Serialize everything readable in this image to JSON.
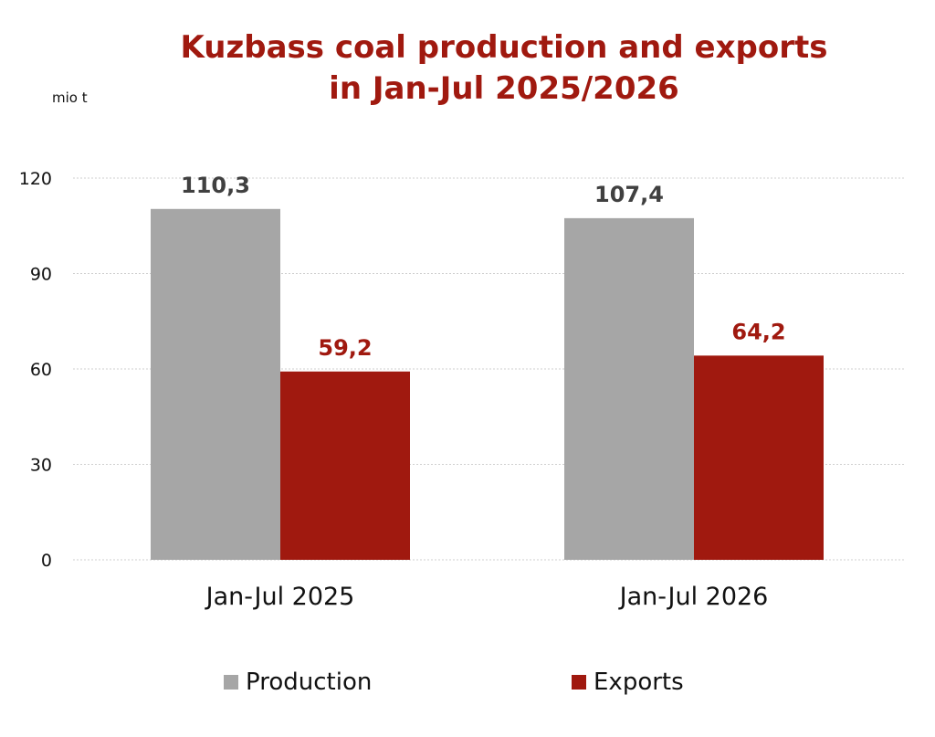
{
  "chart_data": {
    "type": "bar",
    "title_lines": [
      "Kuzbass coal production and exports",
      "in Jan-Jul 2025/2026"
    ],
    "ylabel": "mio t",
    "xlabel": "",
    "categories": [
      "Jan-Jul 2025",
      "Jan-Jul 2026"
    ],
    "series": [
      {
        "name": "Production",
        "values": [
          110.3,
          107.4
        ],
        "labels": [
          "110,3",
          "107,4"
        ],
        "color": "#a6a6a6",
        "label_color": "#404040"
      },
      {
        "name": "Exports",
        "values": [
          59.2,
          64.2
        ],
        "labels": [
          "59,2",
          "64,2"
        ],
        "color": "#a0190f",
        "label_color": "#a0190f"
      }
    ],
    "ylim": [
      0,
      120
    ],
    "yticks": [
      0,
      30,
      60,
      90,
      120
    ],
    "grid": true,
    "legend_position": "bottom"
  }
}
